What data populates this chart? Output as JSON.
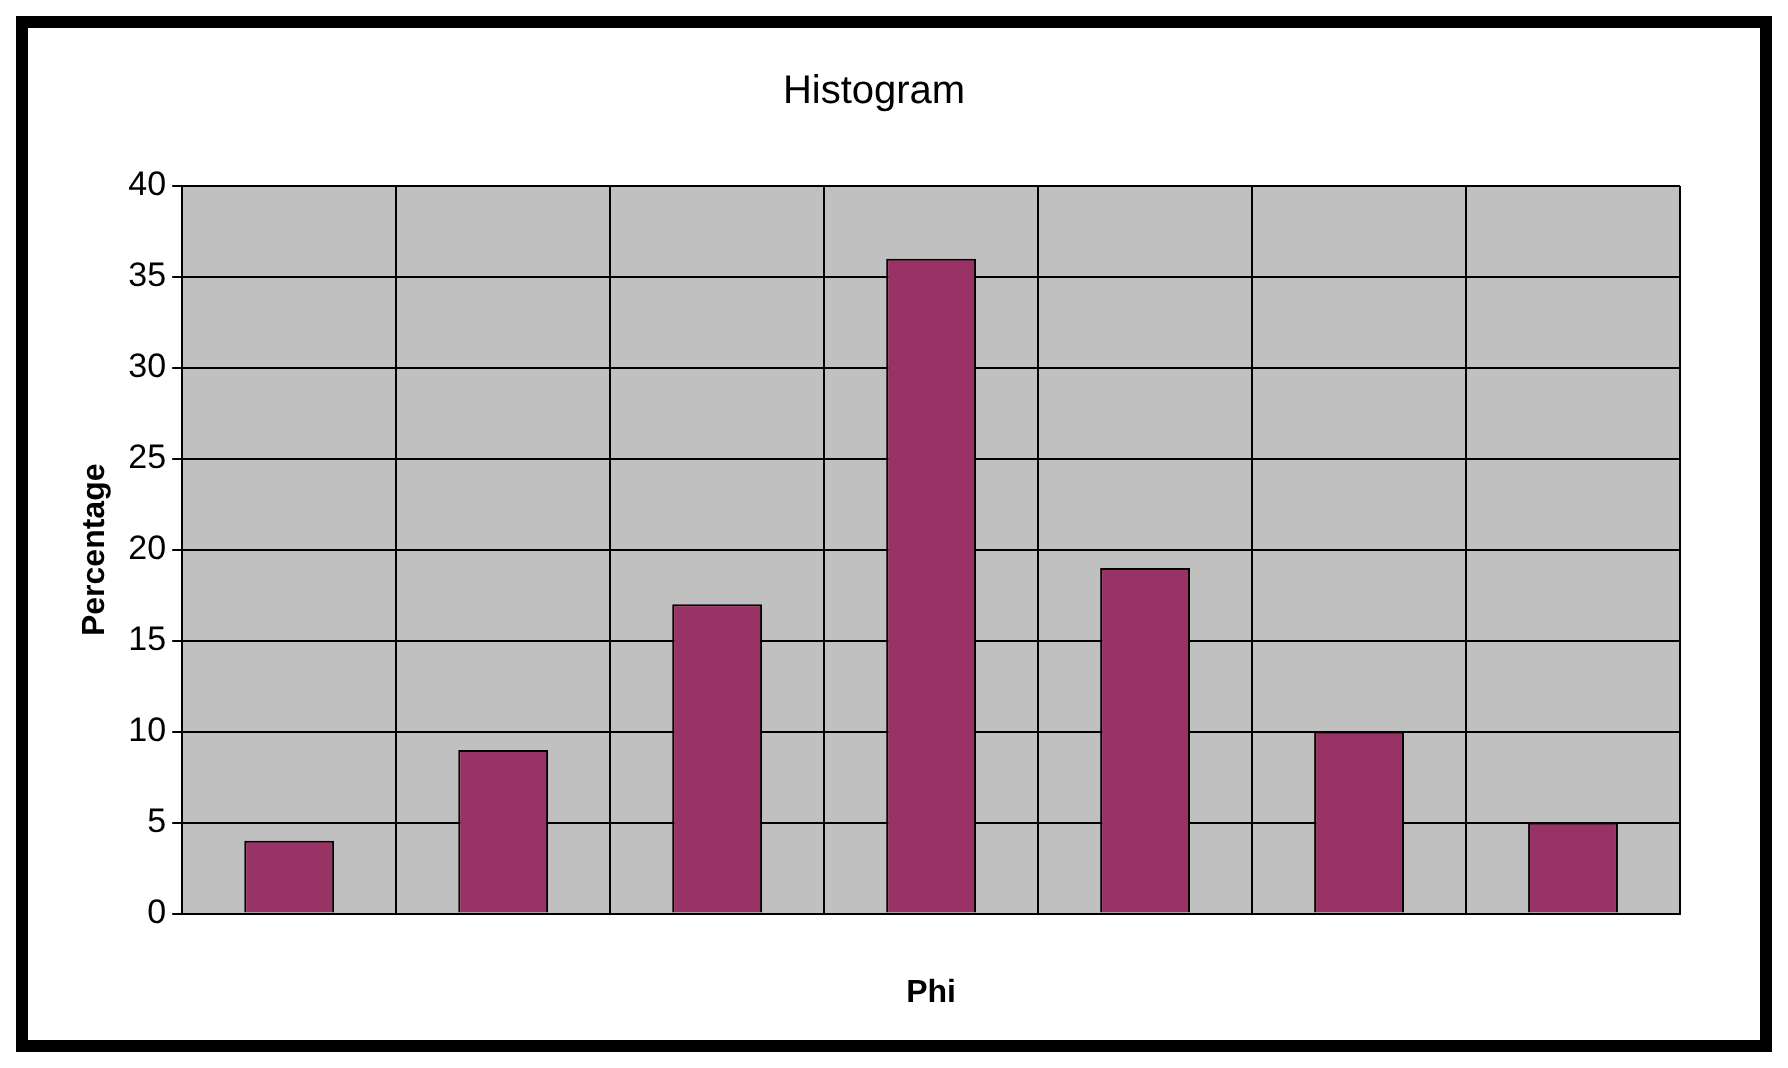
{
  "chart_data": {
    "type": "bar",
    "title": "Histogram",
    "xlabel": "Phi",
    "ylabel": "Percentage",
    "categories": [
      null,
      null,
      null,
      null,
      null,
      null,
      null
    ],
    "values": [
      4,
      9,
      17,
      36,
      19,
      10,
      5
    ],
    "color": "#993366",
    "ylim": [
      0,
      40
    ],
    "yticks": [
      0,
      5,
      10,
      15,
      20,
      25,
      30,
      35,
      40
    ],
    "grid": true,
    "legend": false
  }
}
